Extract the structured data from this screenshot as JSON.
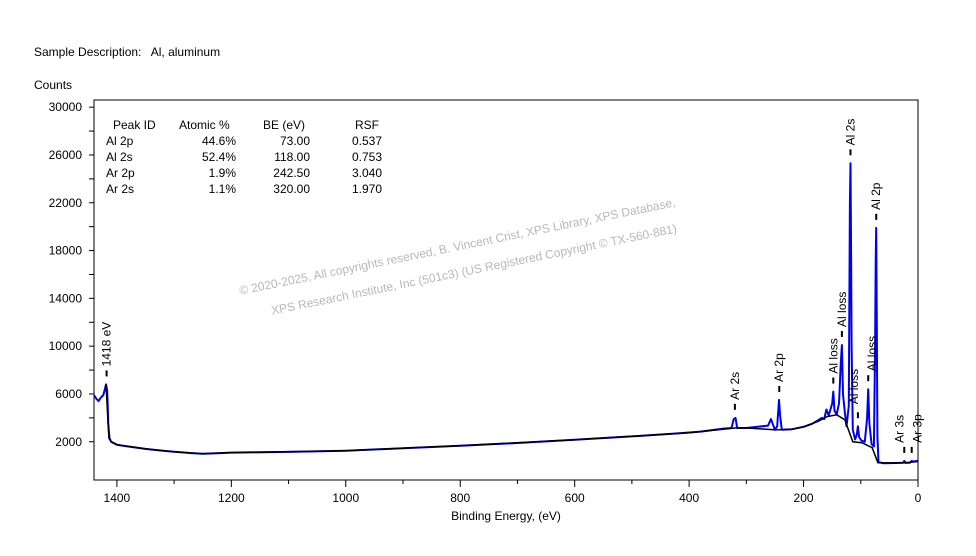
{
  "header": {
    "sample_label": "Sample Description:",
    "sample_value": "Al, aluminum",
    "counts_label": "Counts"
  },
  "watermark": {
    "line1": "©  2020-2025,  All copyrights reserved,   B. Vincent Crist,  XPS Library, XPS Database,",
    "line2": "XPS Research Institute, Inc (501c3)   (US Registered Copyright © TX-560-881)"
  },
  "chart_data": {
    "type": "line",
    "title": "",
    "xlabel": "Binding Energy, (eV)",
    "ylabel": "Counts",
    "xlim": [
      1440,
      0
    ],
    "ylim": [
      -1200,
      30600
    ],
    "xticks": [
      1400,
      1200,
      1000,
      800,
      600,
      400,
      200,
      0
    ],
    "xminor_step": 100,
    "yticks": [
      2000,
      6000,
      10000,
      14000,
      18000,
      22000,
      26000,
      30000
    ],
    "yminor_step": 2000,
    "grid": false,
    "colors": {
      "spectrum": "#0000ee",
      "background": "#000000"
    },
    "table": {
      "headers": [
        "Peak ID",
        "Atomic %",
        "BE (eV)",
        "RSF"
      ],
      "rows": [
        [
          "Al 2p",
          "44.6%",
          "73.00",
          "0.537"
        ],
        [
          "Al 2s",
          "52.4%",
          "118.00",
          "0.753"
        ],
        [
          "Ar 2p",
          "1.9%",
          "242.50",
          "3.040"
        ],
        [
          "Ar 2s",
          "1.1%",
          "320.00",
          "1.970"
        ]
      ]
    },
    "peak_labels": [
      {
        "text": "1418 eV",
        "x": 1418,
        "y": 6800
      },
      {
        "text": "Ar 2s",
        "x": 320,
        "y": 4000
      },
      {
        "text": "Ar 2p",
        "x": 242.5,
        "y": 5500
      },
      {
        "text": "Al loss",
        "x": 148,
        "y": 6200
      },
      {
        "text": "Al loss",
        "x": 133,
        "y": 10100
      },
      {
        "text": "Al 2s",
        "x": 118,
        "y": 25300
      },
      {
        "text": "Al loss",
        "x": 105,
        "y": 3300
      },
      {
        "text": "Al loss",
        "x": 87,
        "y": 6400
      },
      {
        "text": "Al 2p",
        "x": 73,
        "y": 19900
      },
      {
        "text": "Ar 3s",
        "x": 24,
        "y": 400
      },
      {
        "text": "Ar 3p",
        "x": 11,
        "y": 400
      }
    ],
    "series": [
      {
        "name": "spectrum",
        "points": [
          [
            1440,
            5900
          ],
          [
            1436,
            5600
          ],
          [
            1432,
            5400
          ],
          [
            1428,
            5700
          ],
          [
            1424,
            5900
          ],
          [
            1421,
            6400
          ],
          [
            1419,
            6800
          ],
          [
            1417,
            6300
          ],
          [
            1415,
            3500
          ],
          [
            1413,
            2300
          ],
          [
            1410,
            2000
          ],
          [
            1400,
            1750
          ],
          [
            1380,
            1600
          ],
          [
            1350,
            1400
          ],
          [
            1320,
            1250
          ],
          [
            1300,
            1170
          ],
          [
            1270,
            1050
          ],
          [
            1250,
            1000
          ],
          [
            1220,
            1050
          ],
          [
            1200,
            1090
          ],
          [
            1100,
            1150
          ],
          [
            1000,
            1250
          ],
          [
            900,
            1450
          ],
          [
            800,
            1670
          ],
          [
            700,
            1900
          ],
          [
            600,
            2170
          ],
          [
            500,
            2450
          ],
          [
            420,
            2700
          ],
          [
            380,
            2850
          ],
          [
            340,
            3100
          ],
          [
            326,
            3150
          ],
          [
            322,
            3900
          ],
          [
            319,
            4000
          ],
          [
            316,
            3150
          ],
          [
            300,
            3150
          ],
          [
            280,
            3250
          ],
          [
            262,
            3350
          ],
          [
            257,
            3900
          ],
          [
            254,
            3500
          ],
          [
            250,
            3000
          ],
          [
            246,
            3300
          ],
          [
            243,
            5500
          ],
          [
            241,
            4200
          ],
          [
            238,
            3000
          ],
          [
            220,
            3050
          ],
          [
            200,
            3250
          ],
          [
            185,
            3500
          ],
          [
            175,
            3800
          ],
          [
            168,
            4000
          ],
          [
            164,
            3900
          ],
          [
            160,
            4700
          ],
          [
            156,
            4200
          ],
          [
            150,
            5200
          ],
          [
            148,
            6200
          ],
          [
            146,
            4600
          ],
          [
            142,
            4300
          ],
          [
            138,
            5200
          ],
          [
            135,
            8600
          ],
          [
            133,
            10100
          ],
          [
            131,
            6000
          ],
          [
            128,
            4500
          ],
          [
            125,
            3300
          ],
          [
            121,
            5000
          ],
          [
            119,
            22000
          ],
          [
            118,
            25300
          ],
          [
            117,
            19000
          ],
          [
            116,
            10000
          ],
          [
            114,
            3000
          ],
          [
            110,
            2200
          ],
          [
            107,
            2600
          ],
          [
            105,
            3300
          ],
          [
            103,
            2400
          ],
          [
            99,
            2100
          ],
          [
            93,
            2000
          ],
          [
            89,
            4000
          ],
          [
            87,
            6400
          ],
          [
            85,
            3500
          ],
          [
            81,
            1800
          ],
          [
            77,
            1600
          ],
          [
            75,
            10000
          ],
          [
            74,
            17000
          ],
          [
            73,
            19900
          ],
          [
            72,
            12000
          ],
          [
            71,
            2500
          ],
          [
            69,
            300
          ],
          [
            60,
            200
          ],
          [
            40,
            220
          ],
          [
            26,
            250
          ],
          [
            24,
            400
          ],
          [
            22,
            230
          ],
          [
            14,
            250
          ],
          [
            11,
            400
          ],
          [
            8,
            350
          ],
          [
            0,
            400
          ]
        ]
      },
      {
        "name": "background",
        "points": [
          [
            1419,
            6800
          ],
          [
            1414,
            2300
          ],
          [
            1410,
            2000
          ],
          [
            1400,
            1750
          ],
          [
            1350,
            1400
          ],
          [
            1300,
            1170
          ],
          [
            1250,
            1000
          ],
          [
            1200,
            1090
          ],
          [
            1000,
            1250
          ],
          [
            800,
            1670
          ],
          [
            600,
            2170
          ],
          [
            400,
            2750
          ],
          [
            330,
            3100
          ],
          [
            320,
            3150
          ],
          [
            300,
            3150
          ],
          [
            250,
            3000
          ],
          [
            243,
            3000
          ],
          [
            220,
            3050
          ],
          [
            200,
            3250
          ],
          [
            175,
            3700
          ],
          [
            159,
            4100
          ],
          [
            142,
            4260
          ],
          [
            128,
            3850
          ],
          [
            114,
            2000
          ],
          [
            98,
            1920
          ],
          [
            80,
            1500
          ],
          [
            70,
            250
          ],
          [
            40,
            220
          ],
          [
            24,
            250
          ],
          [
            11,
            300
          ],
          [
            0,
            350
          ]
        ]
      }
    ]
  }
}
